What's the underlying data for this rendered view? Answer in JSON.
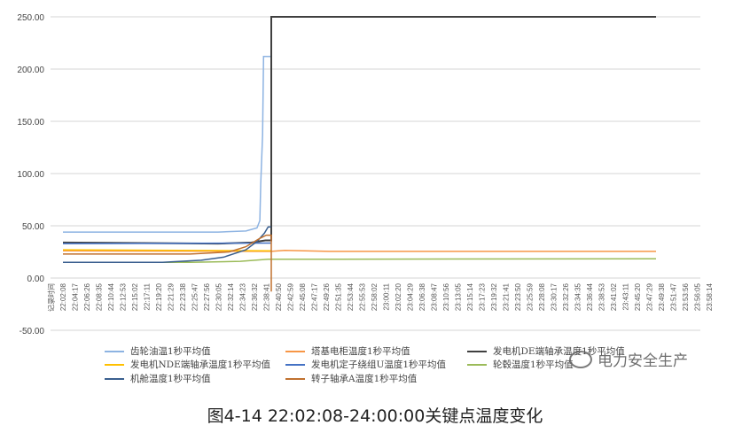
{
  "chart_data": {
    "type": "line",
    "title": "",
    "caption": "图4-14 22:02:08-24:00:00关键点温度变化",
    "xlabel": "记录时间",
    "ylabel": "",
    "ylim": [
      -50,
      250
    ],
    "yticks": [
      "250.00",
      "200.00",
      "150.00",
      "100.00",
      "50.00",
      "0.00",
      "-50.00"
    ],
    "ytick_values": [
      250,
      200,
      150,
      100,
      50,
      0,
      -50
    ],
    "grid": true,
    "legend_position": "bottom",
    "xticks": [
      "22:02:08",
      "22:04:17",
      "22:06:26",
      "22:08:35",
      "22:10:44",
      "22:12:53",
      "22:15:02",
      "22:17:11",
      "22:19:20",
      "22:21:29",
      "22:23:38",
      "22:25:47",
      "22:27:56",
      "22:30:05",
      "22:32:14",
      "22:34:23",
      "22:36:32",
      "22:38:41",
      "22:40:50",
      "22:42:59",
      "22:45:08",
      "22:47:17",
      "22:49:26",
      "22:51:35",
      "22:53:44",
      "22:55:53",
      "22:58:02",
      "23:00:11",
      "23:02:20",
      "23:04:29",
      "23:06:38",
      "23:08:47",
      "23:10:56",
      "23:13:05",
      "23:15:14",
      "23:17:23",
      "23:19:32",
      "23:21:41",
      "23:23:50",
      "23:25:59",
      "23:28:08",
      "23:30:17",
      "23:32:26",
      "23:34:35",
      "23:36:44",
      "23:38:53",
      "23:41:02",
      "23:43:11",
      "23:45:20",
      "23:47:29",
      "23:49:38",
      "23:51:47",
      "23:53:56",
      "23:56:05",
      "23:58:14"
    ],
    "series": [
      {
        "name": "齿轮油温1秒平均值",
        "color": "#8db3e2",
        "points": [
          [
            "22:02:08",
            44
          ],
          [
            "22:30:00",
            44
          ],
          [
            "22:35:00",
            45
          ],
          [
            "22:37:00",
            48
          ],
          [
            "22:37:30",
            55
          ],
          [
            "22:37:40",
            90
          ],
          [
            "22:38:00",
            137
          ],
          [
            "22:38:10",
            212
          ],
          [
            "22:39:24",
            212
          ]
        ]
      },
      {
        "name": "塔基电柜温度1秒平均值",
        "color": "#f79646",
        "points": [
          [
            "22:02:08",
            26
          ],
          [
            "22:39:30",
            25.5
          ],
          [
            "22:42:00",
            26.5
          ],
          [
            "22:50:00",
            25.5
          ],
          [
            "23:48:41",
            25.5
          ]
        ]
      },
      {
        "name": "发电机DE端轴承温度1秒平均值",
        "color": "#404040",
        "points": [
          [
            "22:02:08",
            34
          ],
          [
            "22:30:00",
            33
          ],
          [
            "22:36:00",
            34
          ],
          [
            "22:38:30",
            36
          ],
          [
            "22:39:34",
            36
          ],
          [
            "22:39:34",
            250
          ],
          [
            "23:48:41",
            250
          ]
        ]
      },
      {
        "name": "发电机NDE端轴承温度1秒平均值",
        "color": "#ffc000",
        "points": [
          [
            "22:02:08",
            27
          ],
          [
            "22:39:30",
            26
          ]
        ]
      },
      {
        "name": "发电机定子绕组U温度1秒平均值",
        "color": "#4472c4",
        "points": [
          [
            "22:02:08",
            33
          ],
          [
            "22:39:30",
            33.5
          ]
        ]
      },
      {
        "name": "轮毂温度1秒平均值",
        "color": "#9bbb59",
        "points": [
          [
            "22:02:08",
            15
          ],
          [
            "22:25:00",
            15
          ],
          [
            "22:34:00",
            16
          ],
          [
            "22:39:00",
            18
          ],
          [
            "23:48:41",
            18.5
          ]
        ]
      },
      {
        "name": "机舱温度1秒平均值",
        "color": "#3a5f8f",
        "points": [
          [
            "22:02:08",
            15
          ],
          [
            "22:20:00",
            15
          ],
          [
            "22:27:00",
            17
          ],
          [
            "22:31:00",
            20
          ],
          [
            "22:35:00",
            27
          ],
          [
            "22:37:00",
            35
          ],
          [
            "22:38:20",
            43
          ],
          [
            "22:39:00",
            49
          ],
          [
            "22:39:30",
            49
          ]
        ]
      },
      {
        "name": "转子轴承A温度1秒平均值",
        "color": "#c0712f",
        "points": [
          [
            "22:02:08",
            23
          ],
          [
            "22:25:00",
            23
          ],
          [
            "22:32:00",
            25
          ],
          [
            "22:35:00",
            30
          ],
          [
            "22:37:30",
            38
          ],
          [
            "22:38:40",
            41
          ],
          [
            "22:39:34",
            41
          ],
          [
            "22:39:34",
            -13
          ]
        ]
      }
    ]
  },
  "watermark": "电力安全生产"
}
